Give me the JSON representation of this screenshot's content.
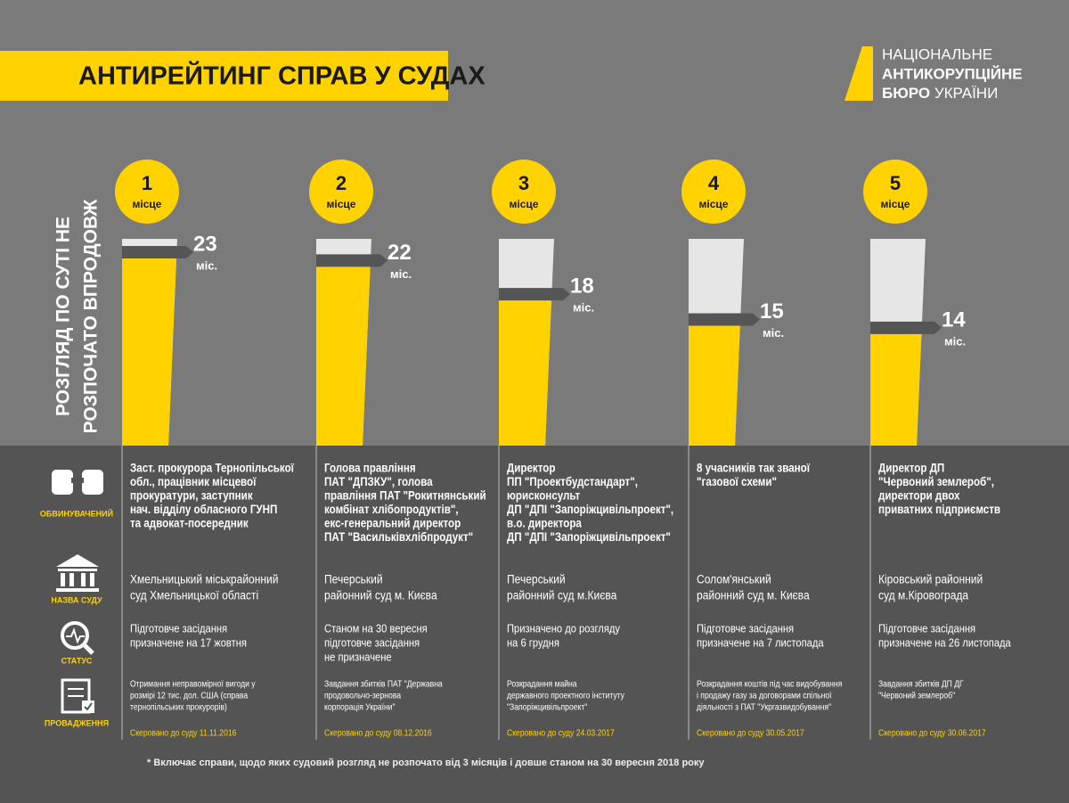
{
  "header": {
    "title": "АНТИРЕЙТИНГ СПРАВ У СУДАХ"
  },
  "logo": {
    "line1": "НАЦІОНАЛЬНЕ",
    "line2": "АНТИКОРУПЦІЙНЕ",
    "line3a": "БЮРО",
    "line3b": "УКРАЇНИ"
  },
  "side_label": [
    "РОЗГЛЯД ПО СУТІ НЕ",
    "РОЗПОЧАТО ВПРОДОВЖ"
  ],
  "row_labels": {
    "accused": "ОБВИНУВАЧЕНИЙ",
    "court": "НАЗВА СУДУ",
    "status": "СТАТУС",
    "proceeding": "ПРОВАДЖЕННЯ"
  },
  "cases": [
    {
      "rank": "1",
      "place": "місце",
      "months": 23,
      "unit": "міс.",
      "accused": [
        "Заст. прокурора Тернопільської",
        "обл., працівник місцевої",
        "прокуратури, заступник",
        "нач. відділу обласного ГУНП",
        "та адвокат-посередник"
      ],
      "court": [
        "Хмельницький міськрайонний",
        "суд Хмельницької області"
      ],
      "status": [
        "Підготовче засідання",
        "призначене на 17 жовтня"
      ],
      "proceeding": [
        "Отримання неправомірної вигоди у",
        "розмірі 12 тис. дол. США (справа",
        "тернопільських прокурорів)"
      ],
      "sent": "Скеровано до суду  11.11.2016"
    },
    {
      "rank": "2",
      "place": "місце",
      "months": 22,
      "unit": "міс.",
      "accused": [
        "Голова правління",
        "ПАТ \"ДПЗКУ\", голова",
        "правління ПАТ \"Рокитнянський",
        "комбінат хлібопродуктів\",",
        "екс-генеральний директор",
        "ПАТ \"Васильківхлібпродукт\""
      ],
      "court": [
        "Печерський",
        "районний суд м. Києва"
      ],
      "status": [
        "Станом на 30 вересня",
        "підготовче засідання",
        "не призначене"
      ],
      "proceeding": [
        "Завдання збитків ПАТ \"Державна",
        "продовольчо-зернова",
        "корпорація України\""
      ],
      "sent": "Скеровано до суду   08.12.2016"
    },
    {
      "rank": "3",
      "place": "місце",
      "months": 18,
      "unit": "міс.",
      "accused": [
        "Директор",
        "ПП \"Проектбудстандарт\",",
        "юрисконсульт",
        "ДП \"ДПІ \"Запоріжцивільпроект\",",
        "в.о. директора",
        "ДП \"ДПІ \"Запоріжцивільпроект\""
      ],
      "court": [
        "Печерський",
        "районний суд м.Києва"
      ],
      "status": [
        "Призначено до розгляду",
        "на 6 грудня"
      ],
      "proceeding": [
        "Розкрадання майна",
        "державного проектного інституту",
        "\"Запоріжцивільпроект\""
      ],
      "sent": "Скеровано до суду 24.03.2017"
    },
    {
      "rank": "4",
      "place": "місце",
      "months": 15,
      "unit": "міс.",
      "accused": [
        "8 учасників так званої",
        "\"газової схеми\""
      ],
      "court": [
        "Солом'янський",
        "районний суд м. Києва"
      ],
      "status": [
        "Підготовче засідання",
        "призначене на 7 листопада"
      ],
      "proceeding": [
        "Розкрадання коштів під час видобування",
        "і продажу газу за договорами спільної",
        "діяльності з ПАТ \"Укргазвидобування\""
      ],
      "sent": "Скеровано до суду  30.05.2017"
    },
    {
      "rank": "5",
      "place": "місце",
      "months": 14,
      "unit": "міс.",
      "accused": [
        "Директор ДП",
        "\"Червоний землероб\",",
        "директори двох",
        "приватних підприємств"
      ],
      "court": [
        "Кіровський районний",
        "суд м.Кіровограда"
      ],
      "status": [
        "Підготовче засідання",
        "призначене на 26 листопада"
      ],
      "proceeding": [
        "Завдання збитків ДП ДГ",
        "\"Червоний землероб\""
      ],
      "sent": "Скеровано до суду  30.06.2017"
    }
  ],
  "footnote": "*  Включає справи, щодо яких судовий розгляд не розпочато від 3 місяців і довше станом на 30 вересня 2018 року"
}
